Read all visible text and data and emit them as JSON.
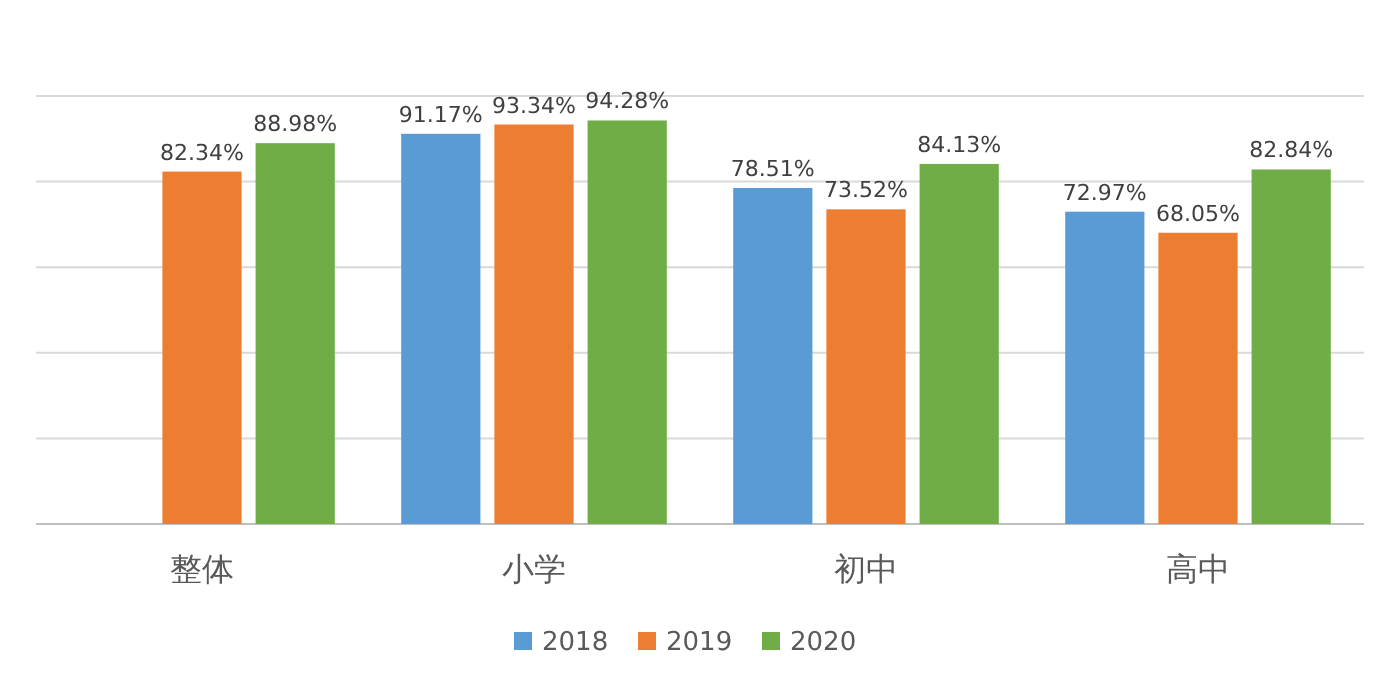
{
  "chart_data": {
    "type": "bar",
    "categories": [
      "整体",
      "小学",
      "初中",
      "高中"
    ],
    "series": [
      {
        "name": "2018",
        "color": "#5b9bd5",
        "values": [
          null,
          91.17,
          78.51,
          72.97
        ],
        "value_labels": [
          null,
          "91.17%",
          "78.51%",
          "72.97%"
        ]
      },
      {
        "name": "2019",
        "color": "#ed7d31",
        "values": [
          82.34,
          93.34,
          73.52,
          68.05
        ],
        "value_labels": [
          "82.34%",
          "93.34%",
          "73.52%",
          "68.05%"
        ]
      },
      {
        "name": "2020",
        "color": "#70ad47",
        "values": [
          88.98,
          94.28,
          84.13,
          82.84
        ],
        "value_labels": [
          "88.98%",
          "94.28%",
          "84.13%",
          "82.84%"
        ]
      }
    ],
    "ylim": [
      0,
      100
    ],
    "yticks": [
      {
        "value": 0,
        "label": null
      },
      {
        "value": 20,
        "label": null
      },
      {
        "value": 40,
        "label": null
      },
      {
        "value": 60,
        "label": null
      },
      {
        "value": 80,
        "label": null
      },
      {
        "value": 100,
        "label": null
      }
    ],
    "grid": "y",
    "legend": "bottom",
    "tick_labels": "x"
  }
}
